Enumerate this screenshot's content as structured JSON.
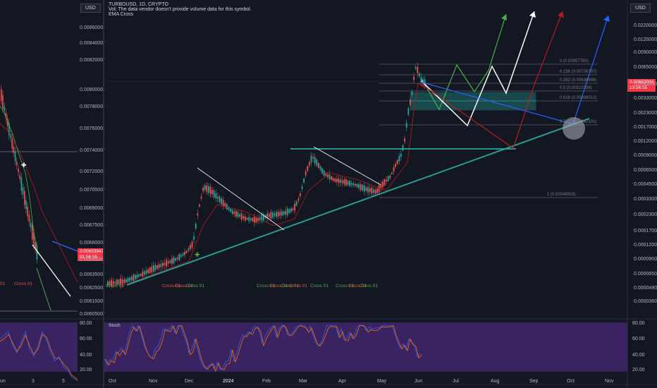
{
  "left_chart": {
    "currency_button": "USD",
    "price_ticks": [
      "0.00860000",
      "0.00840000",
      "0.00820000",
      "0.00800000",
      "0.00780000",
      "0.00760000",
      "0.00740000",
      "0.00720000",
      "0.00705000",
      "0.00690000",
      "0.00675000",
      "0.00660000",
      "0.00645000",
      "0.00635000",
      "0.00625000",
      "0.00615000",
      "0.00605000"
    ],
    "last_price": "0.00653947",
    "countdown": "01:56:55",
    "cross_label": "Cross 01",
    "cross_label_left": "01",
    "stoch_ticks": [
      "80.00",
      "60.00",
      "40.00",
      "20.00"
    ],
    "time_ticks": [
      "un",
      "3",
      "5"
    ]
  },
  "main_chart": {
    "symbol_line": "TURBOUSD, 1D, CRYPTO",
    "volume_note": "Vol: The data vendor doesn't provide volume data for this symbol.",
    "indicator_name": "EMA Cross",
    "currency_button": "USD",
    "price_ticks": [
      "0.02200000",
      "0.01200000",
      "0.00900000",
      "0.00650000",
      "0.00450000",
      "0.00330000",
      "0.00230000",
      "0.00170000",
      "0.00120000",
      "0.00090000",
      "0.00065000",
      "0.00045000",
      "0.00033000",
      "0.00023000",
      "0.00017000",
      "0.00012000",
      "0.00009000",
      "0.00006500",
      "0.00004900",
      "0.00003600"
    ],
    "last_price": "0.00653994",
    "countdown": "13:56:55",
    "fib_levels": [
      {
        "label": "0 (0.00957780)"
      },
      {
        "label": "0.236 (0.00726707)"
      },
      {
        "label": "0.382 (0.00636688)"
      },
      {
        "label": "0.5 (0.00510356)"
      },
      {
        "label": "0.618 (0.00398012)"
      },
      {
        "label": "0.786 (0.00242101)"
      },
      {
        "label": "1 (0.00048918)"
      }
    ],
    "cross_labels": [
      "Cross 01",
      "Cross 01",
      "Cross 02",
      "Cross 01",
      "Cross 01",
      "Cross 01",
      "Cross 01",
      "Cross 01",
      "Cross 01",
      "Cross 01",
      "Cross 01",
      "Cross 01"
    ],
    "stoch_label": "Stoch",
    "stoch_ticks": [
      "80.00",
      "60.00",
      "40.00",
      "20.00"
    ],
    "time_ticks": [
      "Oct",
      "Nov",
      "Dec",
      "2024",
      "Feb",
      "Mar",
      "Apr",
      "May",
      "Jun",
      "Jul",
      "Aug",
      "Sep",
      "Oct",
      "Nov"
    ]
  },
  "colors": {
    "background": "#131722",
    "stoch_fill": "#4a2a7a",
    "trendline": "#26a69a",
    "up_candle": "#26a69a",
    "down_candle": "#ef5350",
    "price_tag": "#f23645",
    "forecast_green": "#4caf50",
    "forecast_white": "#ffffff",
    "forecast_red": "#b71c1c",
    "forecast_blue": "#2962ff"
  }
}
